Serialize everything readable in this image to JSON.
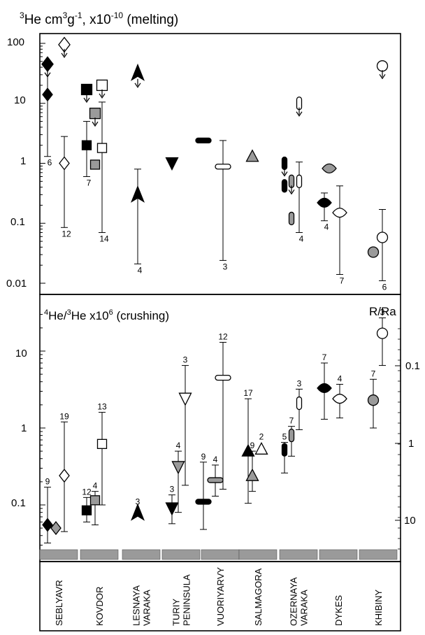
{
  "chart_data": [
    {
      "type": "scatter",
      "title": "3He cm3g-1, x10-10 (melting)",
      "title_parts": {
        "base": "He cm",
        "exp_cm": "3",
        "g": "g",
        "exp_g": "-1",
        "factor": ", x10",
        "exp_factor": "-10",
        "suffix": " (melting)",
        "iso": "3"
      },
      "y_scale": "log",
      "ylim": [
        0.01,
        100
      ],
      "y_ticks": [
        "100",
        "10",
        "1",
        "0.1",
        "0.01"
      ],
      "grid": false,
      "categories": [
        "SEBLYAVR",
        "KOVDOR",
        "LESNAYA VARAKA",
        "TURIY PENINSULA",
        "VUORIYARVY",
        "SALMAGORA",
        "OZERNAYA VARAKA",
        "DYKES",
        "KHIBINY"
      ],
      "points": [
        {
          "group": "SEBLYAVR",
          "marker": "diamond-black",
          "y": 45,
          "upper_limit": true
        },
        {
          "group": "SEBLYAVR",
          "marker": "diamond-black",
          "y": 14,
          "range": [
            1.3,
            45
          ],
          "n": "6"
        },
        {
          "group": "SEBLYAVR",
          "marker": "diamond-open",
          "y": 95,
          "upper_limit": true
        },
        {
          "group": "SEBLYAVR",
          "marker": "diamond-open",
          "y": 1.0,
          "range": [
            0.085,
            2.8
          ],
          "n": "12"
        },
        {
          "group": "KOVDOR",
          "marker": "square-black",
          "y": 17,
          "upper_limit": true
        },
        {
          "group": "KOVDOR",
          "marker": "square-black",
          "y": 2.0,
          "range": [
            0.6,
            5.0
          ],
          "n": "7"
        },
        {
          "group": "KOVDOR",
          "marker": "square-open",
          "y": 20,
          "upper_limit": true
        },
        {
          "group": "KOVDOR",
          "marker": "square-open",
          "y": 1.8,
          "range": [
            0.07,
            10.5
          ],
          "n": "14"
        },
        {
          "group": "KOVDOR",
          "marker": "square-grey",
          "y": 6.8,
          "upper_limit": true
        },
        {
          "group": "KOVDOR",
          "marker": "square-grey",
          "y": 0.95
        },
        {
          "group": "LESNAYA VARAKA",
          "marker": "arrow-black",
          "y": 30,
          "upper_limit": true
        },
        {
          "group": "LESNAYA VARAKA",
          "marker": "arrow-black",
          "y": 0.28,
          "range": [
            0.021,
            0.8
          ],
          "n": "4"
        },
        {
          "group": "TURIY PENINSULA",
          "marker": "triangle-down-black",
          "y": 1.0
        },
        {
          "group": "VUORIYARVY",
          "marker": "bar-black",
          "y": 2.4
        },
        {
          "group": "VUORIYARVY",
          "marker": "bar-open",
          "y": 0.88,
          "range": [
            0.024,
            2.4
          ],
          "n": "3"
        },
        {
          "group": "SALMAGORA",
          "marker": "triangle-up-grey",
          "y": 1.3
        },
        {
          "group": "OZERNAYA VARAKA",
          "marker": "pill-black",
          "y": 1.0,
          "upper_limit": true
        },
        {
          "group": "OZERNAYA VARAKA",
          "marker": "pill-black",
          "y": 0.42
        },
        {
          "group": "OZERNAYA VARAKA",
          "marker": "pill-grey",
          "y": 0.5,
          "upper_limit": true
        },
        {
          "group": "OZERNAYA VARAKA",
          "marker": "pill-grey",
          "y": 0.12
        },
        {
          "group": "OZERNAYA VARAKA",
          "marker": "pill-open",
          "y": 10,
          "upper_limit": true
        },
        {
          "group": "OZERNAYA VARAKA",
          "marker": "pill-open",
          "y": 0.5,
          "range": [
            0.07,
            1.05
          ],
          "n": "4"
        },
        {
          "group": "DYKES",
          "marker": "lens-black",
          "y": 0.22,
          "range": [
            0.11,
            0.32
          ],
          "n": "4"
        },
        {
          "group": "DYKES",
          "marker": "lens-grey",
          "y": 0.82
        },
        {
          "group": "DYKES",
          "marker": "lens-open",
          "y": 0.15,
          "range": [
            0.014,
            0.42
          ],
          "n": "7"
        },
        {
          "group": "KHIBINY",
          "marker": "circle-open",
          "y": 42,
          "upper_limit": true
        },
        {
          "group": "KHIBINY",
          "marker": "circle-open",
          "y": 0.058,
          "range": [
            0.011,
            0.17
          ],
          "n": "6"
        },
        {
          "group": "KHIBINY",
          "marker": "circle-grey",
          "y": 0.033
        }
      ]
    },
    {
      "type": "scatter",
      "title": "4He/3He x10 6 (crushing)",
      "title_parts": {
        "iso4": "4",
        "he1": "He/",
        "iso3": "3",
        "he2": "He x10",
        "exp": "6",
        "suffix": " (crushing)"
      },
      "y_scale": "log",
      "ylim": [
        0.025,
        40
      ],
      "y_ticks": [
        "10",
        "1",
        "0.1"
      ],
      "right_axis_label": "R/Ra",
      "right_ticks": [
        "0.1",
        "1",
        "10"
      ],
      "grid": false,
      "categories": [
        "SEBLYAVR",
        "KOVDOR",
        "LESNAYA VARAKA",
        "TURIY PENINSULA",
        "VUORIYARVY",
        "SALMAGORA",
        "OZERNAYA VARAKA",
        "DYKES",
        "KHIBINY"
      ],
      "points": [
        {
          "group": "SEBLYAVR",
          "marker": "diamond-black",
          "y": 0.055,
          "range": [
            0.032,
            0.17
          ],
          "n": "9"
        },
        {
          "group": "SEBLYAVR",
          "marker": "diamond-grey",
          "y": 0.05
        },
        {
          "group": "SEBLYAVR",
          "marker": "diamond-open",
          "y": 0.24,
          "range": [
            0.045,
            1.2
          ],
          "n": "19"
        },
        {
          "group": "KOVDOR",
          "marker": "square-black",
          "y": 0.085,
          "range": [
            0.06,
            0.125
          ],
          "n": "12"
        },
        {
          "group": "KOVDOR",
          "marker": "square-grey",
          "y": 0.115,
          "range": [
            0.055,
            0.15
          ],
          "n": "4"
        },
        {
          "group": "KOVDOR",
          "marker": "square-open",
          "y": 0.62,
          "range": [
            0.1,
            1.6
          ],
          "n": "13"
        },
        {
          "group": "LESNAYA VARAKA",
          "marker": "arrow-black",
          "y": 0.075,
          "n": "3"
        },
        {
          "group": "TURIY PENINSULA",
          "marker": "triangle-down-black",
          "y": 0.09,
          "range": [
            0.057,
            0.135
          ],
          "n": "3"
        },
        {
          "group": "TURIY PENINSULA",
          "marker": "triangle-down-grey",
          "y": 0.31,
          "range": [
            0.08,
            0.5
          ],
          "n": "4"
        },
        {
          "group": "TURIY PENINSULA",
          "marker": "triangle-down-open",
          "y": 2.4,
          "range": [
            0.18,
            6.5
          ],
          "n": "3"
        },
        {
          "group": "VUORIYARVY",
          "marker": "bar-black",
          "y": 0.11,
          "range": [
            0.048,
            0.36
          ],
          "n": "9"
        },
        {
          "group": "VUORIYARVY",
          "marker": "bar-grey",
          "y": 0.21,
          "range": [
            0.13,
            0.33
          ],
          "n": "4"
        },
        {
          "group": "VUORIYARVY",
          "marker": "bar-open",
          "y": 4.5,
          "range": [
            0.16,
            13
          ],
          "n": "12"
        },
        {
          "group": "SALMAGORA",
          "marker": "triangle-up-black",
          "y": 0.5,
          "range": [
            0.105,
            2.4
          ],
          "n": "17"
        },
        {
          "group": "SALMAGORA",
          "marker": "triangle-up-grey",
          "y": 0.24,
          "range": [
            0.15,
            0.5
          ],
          "n": "9"
        },
        {
          "group": "SALMAGORA",
          "marker": "triangle-up-open",
          "y": 0.53,
          "n": "2"
        },
        {
          "group": "OZERNAYA VARAKA",
          "marker": "pill-black",
          "y": 0.52,
          "range": [
            0.26,
            0.65
          ],
          "n": "5"
        },
        {
          "group": "OZERNAYA VARAKA",
          "marker": "pill-grey",
          "y": 0.8,
          "range": [
            0.43,
            1.05
          ],
          "n": "7"
        },
        {
          "group": "OZERNAYA VARAKA",
          "marker": "pill-open",
          "y": 2.1,
          "range": [
            0.95,
            3.2
          ],
          "n": "3"
        },
        {
          "group": "DYKES",
          "marker": "lens-black",
          "y": 3.3,
          "range": [
            1.3,
            7.0
          ],
          "n": "7"
        },
        {
          "group": "DYKES",
          "marker": "lens-open",
          "y": 2.4,
          "range": [
            1.35,
            3.7
          ],
          "n": "4"
        },
        {
          "group": "KHIBINY",
          "marker": "circle-grey",
          "y": 2.3,
          "range": [
            1.0,
            4.3
          ],
          "n": "7"
        },
        {
          "group": "KHIBINY",
          "marker": "circle-open",
          "y": 17,
          "range": [
            6.5,
            27
          ],
          "n": "3"
        }
      ]
    }
  ],
  "locations": [
    {
      "name": "SEBLYAVR",
      "lines": [
        "SEBLYAVR"
      ]
    },
    {
      "name": "KOVDOR",
      "lines": [
        "KOVDOR"
      ]
    },
    {
      "name": "LESNAYA VARAKA",
      "lines": [
        "LESNAYA",
        "VARAKA"
      ]
    },
    {
      "name": "TURIY PENINSULA",
      "lines": [
        "TURIY",
        "PENINSULA"
      ]
    },
    {
      "name": "VUORIYARVY",
      "lines": [
        "VUORIYARVY"
      ]
    },
    {
      "name": "SALMAGORA",
      "lines": [
        "SALMAGORA"
      ]
    },
    {
      "name": "OZERNAYA VARAKA",
      "lines": [
        "OZERNAYA",
        "VARAKA"
      ]
    },
    {
      "name": "DYKES",
      "lines": [
        "DYKES"
      ]
    },
    {
      "name": "KHIBINY",
      "lines": [
        "KHIBINY"
      ]
    }
  ]
}
